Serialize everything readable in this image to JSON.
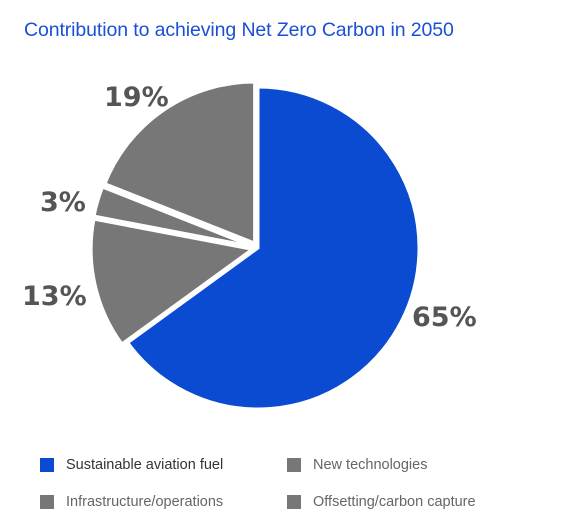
{
  "title": "Contribution to achieving Net Zero Carbon in 2050",
  "colors": {
    "title": "#1a4fd6",
    "primary": "#0a4bd1",
    "secondary": "#777777",
    "label_dark": "#555555",
    "legend_text": "#333333",
    "legend_text_muted": "#666666"
  },
  "chart_data": {
    "type": "pie",
    "title": "Contribution to achieving Net Zero Carbon in 2050",
    "start_angle_deg": 0,
    "direction": "clockwise",
    "slices": [
      {
        "name": "Sustainable aviation fuel",
        "value": 65,
        "label": "65%",
        "color": "#0a4bd1",
        "exploded": false
      },
      {
        "name": "Infrastructure/operations",
        "value": 13,
        "label": "13%",
        "color": "#777777",
        "exploded": true
      },
      {
        "name": "New technologies",
        "value": 3,
        "label": "3%",
        "color": "#777777",
        "exploded": true
      },
      {
        "name": "Offsetting/carbon capture",
        "value": 19,
        "label": "19%",
        "color": "#777777",
        "exploded": true
      }
    ],
    "legend": {
      "placement": "bottom",
      "items": [
        {
          "label": "Sustainable aviation fuel",
          "color": "#0a4bd1"
        },
        {
          "label": "New technologies",
          "color": "#777777"
        },
        {
          "label": "Infrastructure/operations",
          "color": "#777777"
        },
        {
          "label": "Offsetting/carbon capture",
          "color": "#777777"
        }
      ]
    }
  }
}
